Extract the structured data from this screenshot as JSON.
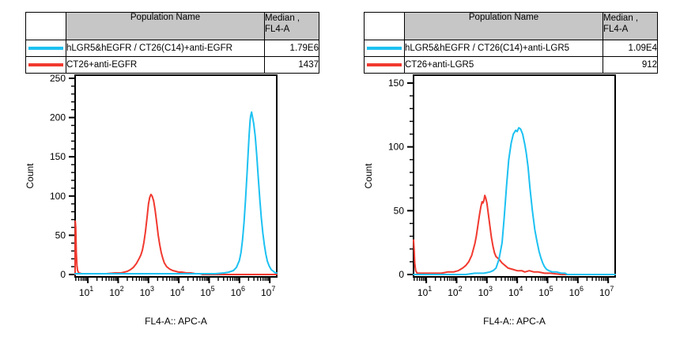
{
  "chart_data": [
    {
      "type": "line",
      "panel": "anti-EGFR",
      "title": "",
      "xlabel": "FL4-A:: APC-A",
      "ylabel": "Count",
      "x_axis": {
        "scale": "log10",
        "range_log10": [
          0.58,
          7.23
        ],
        "major_exponents": [
          1,
          2,
          3,
          4,
          5,
          6,
          7
        ]
      },
      "y_axis": {
        "range": [
          0,
          255
        ],
        "majors": [
          0,
          50,
          100,
          150,
          200,
          250
        ],
        "minor_step": 10
      },
      "legend_position": "table-above",
      "grid": false,
      "table": {
        "col_population": "Population Name",
        "col_median_line1": "Median ,",
        "col_median_line2": "FL4-A",
        "rows": [
          {
            "color": "#1cc1f2",
            "name": "hLGR5&hEGFR / CT26(C14)+anti-EGFR",
            "median": "1.79E6"
          },
          {
            "color": "#f1392f",
            "name": "CT26+anti-EGFR",
            "median": "1437"
          }
        ]
      },
      "series": [
        {
          "name": "CT26+anti-EGFR",
          "color": "#f1392f",
          "median": 1437,
          "points": [
            [
              0.58,
              0
            ],
            [
              0.585,
              68
            ],
            [
              0.6,
              60
            ],
            [
              0.62,
              28
            ],
            [
              0.64,
              12
            ],
            [
              0.66,
              5
            ],
            [
              0.7,
              2
            ],
            [
              0.8,
              1
            ],
            [
              1.0,
              1
            ],
            [
              1.3,
              1
            ],
            [
              1.6,
              1
            ],
            [
              1.9,
              2
            ],
            [
              2.1,
              2
            ],
            [
              2.3,
              4
            ],
            [
              2.4,
              6
            ],
            [
              2.5,
              9
            ],
            [
              2.6,
              14
            ],
            [
              2.7,
              21
            ],
            [
              2.75,
              25
            ],
            [
              2.8,
              31
            ],
            [
              2.85,
              41
            ],
            [
              2.9,
              55
            ],
            [
              2.95,
              72
            ],
            [
              3.0,
              90
            ],
            [
              3.04,
              98
            ],
            [
              3.08,
              102
            ],
            [
              3.12,
              100
            ],
            [
              3.17,
              94
            ],
            [
              3.22,
              82
            ],
            [
              3.27,
              66
            ],
            [
              3.32,
              50
            ],
            [
              3.37,
              38
            ],
            [
              3.42,
              28
            ],
            [
              3.47,
              21
            ],
            [
              3.52,
              15
            ],
            [
              3.6,
              10
            ],
            [
              3.7,
              7
            ],
            [
              3.8,
              5
            ],
            [
              3.9,
              4
            ],
            [
              4.0,
              3
            ],
            [
              4.1,
              3
            ],
            [
              4.25,
              2
            ],
            [
              4.4,
              2
            ],
            [
              4.55,
              1
            ],
            [
              4.7,
              1
            ],
            [
              4.78,
              0
            ],
            [
              7.23,
              0
            ]
          ]
        },
        {
          "name": "hLGR5&hEGFR / CT26(C14)+anti-EGFR",
          "color": "#1cc1f2",
          "median": 1790000,
          "points": [
            [
              0.58,
              1
            ],
            [
              1.5,
              1
            ],
            [
              3.0,
              1
            ],
            [
              4.5,
              1
            ],
            [
              5.2,
              1
            ],
            [
              5.5,
              2
            ],
            [
              5.65,
              3
            ],
            [
              5.8,
              5
            ],
            [
              5.9,
              9
            ],
            [
              6.0,
              18
            ],
            [
              6.05,
              28
            ],
            [
              6.1,
              44
            ],
            [
              6.15,
              66
            ],
            [
              6.2,
              95
            ],
            [
              6.25,
              128
            ],
            [
              6.29,
              158
            ],
            [
              6.32,
              178
            ],
            [
              6.35,
              196
            ],
            [
              6.37,
              202
            ],
            [
              6.4,
              207
            ],
            [
              6.43,
              201
            ],
            [
              6.47,
              192
            ],
            [
              6.52,
              176
            ],
            [
              6.57,
              152
            ],
            [
              6.62,
              124
            ],
            [
              6.67,
              97
            ],
            [
              6.72,
              73
            ],
            [
              6.77,
              53
            ],
            [
              6.82,
              38
            ],
            [
              6.87,
              26
            ],
            [
              6.92,
              17
            ],
            [
              6.98,
              11
            ],
            [
              7.05,
              6
            ],
            [
              7.12,
              4
            ],
            [
              7.18,
              2
            ],
            [
              7.23,
              2
            ]
          ]
        }
      ]
    },
    {
      "type": "line",
      "panel": "anti-LGR5",
      "title": "",
      "xlabel": "FL4-A:: APC-A",
      "ylabel": "Count",
      "x_axis": {
        "scale": "log10",
        "range_log10": [
          0.58,
          7.23
        ],
        "major_exponents": [
          1,
          2,
          3,
          4,
          5,
          6,
          7
        ]
      },
      "y_axis": {
        "range": [
          0,
          156
        ],
        "majors": [
          0,
          50,
          100,
          150
        ],
        "minor_step": 10
      },
      "legend_position": "table-above",
      "grid": false,
      "table": {
        "col_population": "Population Name",
        "col_median_line1": "Median ,",
        "col_median_line2": "FL4-A",
        "rows": [
          {
            "color": "#1cc1f2",
            "name": "hLGR5&hEGFR / CT26(C14)+anti-LGR5",
            "median": "1.09E4"
          },
          {
            "color": "#f1392f",
            "name": "CT26+anti-LGR5",
            "median": "912"
          }
        ]
      },
      "series": [
        {
          "name": "CT26+anti-LGR5",
          "color": "#f1392f",
          "median": 912,
          "points": [
            [
              0.58,
              27
            ],
            [
              0.6,
              19
            ],
            [
              0.62,
              9
            ],
            [
              0.65,
              3
            ],
            [
              0.7,
              1
            ],
            [
              0.9,
              1
            ],
            [
              1.2,
              1
            ],
            [
              1.5,
              1
            ],
            [
              1.7,
              2
            ],
            [
              1.9,
              2
            ],
            [
              2.05,
              3
            ],
            [
              2.2,
              5
            ],
            [
              2.3,
              7
            ],
            [
              2.4,
              10
            ],
            [
              2.5,
              15
            ],
            [
              2.6,
              24
            ],
            [
              2.65,
              30
            ],
            [
              2.7,
              38
            ],
            [
              2.75,
              46
            ],
            [
              2.8,
              53
            ],
            [
              2.84,
              57
            ],
            [
              2.87,
              56
            ],
            [
              2.9,
              58
            ],
            [
              2.93,
              62
            ],
            [
              2.96,
              60
            ],
            [
              3.0,
              56
            ],
            [
              3.05,
              47
            ],
            [
              3.1,
              38
            ],
            [
              3.15,
              29
            ],
            [
              3.2,
              22
            ],
            [
              3.25,
              17
            ],
            [
              3.3,
              14
            ],
            [
              3.4,
              12
            ],
            [
              3.5,
              9
            ],
            [
              3.6,
              7
            ],
            [
              3.7,
              5
            ],
            [
              3.85,
              4
            ],
            [
              4.0,
              3
            ],
            [
              4.15,
              3
            ],
            [
              4.25,
              2
            ],
            [
              4.4,
              3
            ],
            [
              4.55,
              2
            ],
            [
              4.7,
              2
            ],
            [
              4.9,
              1
            ],
            [
              5.1,
              1
            ],
            [
              5.45,
              0
            ],
            [
              7.23,
              0
            ]
          ]
        },
        {
          "name": "hLGR5&hEGFR / CT26(C14)+anti-LGR5",
          "color": "#1cc1f2",
          "median": 10900,
          "points": [
            [
              0.58,
              0
            ],
            [
              2.3,
              0
            ],
            [
              2.6,
              1
            ],
            [
              2.9,
              1
            ],
            [
              3.1,
              2
            ],
            [
              3.2,
              3
            ],
            [
              3.3,
              5
            ],
            [
              3.4,
              12
            ],
            [
              3.5,
              25
            ],
            [
              3.57,
              45
            ],
            [
              3.65,
              70
            ],
            [
              3.72,
              90
            ],
            [
              3.8,
              103
            ],
            [
              3.87,
              110
            ],
            [
              3.95,
              113
            ],
            [
              4.0,
              112
            ],
            [
              4.05,
              115
            ],
            [
              4.11,
              114
            ],
            [
              4.18,
              110
            ],
            [
              4.25,
              102
            ],
            [
              4.3,
              95
            ],
            [
              4.36,
              84
            ],
            [
              4.42,
              68
            ],
            [
              4.5,
              50
            ],
            [
              4.58,
              35
            ],
            [
              4.65,
              26
            ],
            [
              4.72,
              18
            ],
            [
              4.78,
              13
            ],
            [
              4.84,
              9
            ],
            [
              4.9,
              6
            ],
            [
              4.97,
              4
            ],
            [
              5.05,
              3
            ],
            [
              5.15,
              2
            ],
            [
              5.3,
              2
            ],
            [
              5.45,
              1
            ],
            [
              5.58,
              1
            ],
            [
              5.65,
              0
            ],
            [
              7.23,
              0
            ]
          ]
        }
      ]
    }
  ]
}
